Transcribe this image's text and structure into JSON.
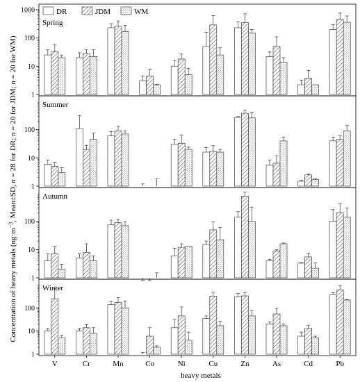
{
  "chart_data": {
    "type": "bar",
    "yscale": "log",
    "ylim": [
      1,
      1000
    ],
    "yticks": [
      "1",
      "10",
      "100",
      "1000"
    ],
    "xlabel": "heavy metals",
    "ylabel_parts": [
      "Concentration of heavy metals (ng·m",
      "−3",
      ", Mean±SD, ",
      "n",
      " = 28 for DR; ",
      "n",
      " = 20 for JDM; ",
      "n",
      " = 20 for WM)"
    ],
    "categories": [
      "V",
      "Cr",
      "Mn",
      "Co",
      "Ni",
      "Cu",
      "Zn",
      "As",
      "Cd",
      "Pb"
    ],
    "legend": [
      "DR",
      "JDM",
      "WM"
    ],
    "legend_position": "top-left",
    "panels": [
      {
        "season": "Spring",
        "series": [
          {
            "name": "DR",
            "values": [
              25,
              20,
              230,
              3,
              10,
              50,
              230,
              22,
              2.2,
              200
            ],
            "errors": [
              38,
              30,
              320,
              4.5,
              16,
              160,
              370,
              32,
              3.2,
              300
            ]
          },
          {
            "name": "JDM",
            "values": [
              32,
              28,
              260,
              4.5,
              18,
              290,
              350,
              50,
              3.8,
              450
            ],
            "errors": [
              58,
              38,
              400,
              7.5,
              27,
              620,
              720,
              110,
              7,
              760
            ]
          },
          {
            "name": "WM",
            "values": [
              20,
              22,
              170,
              2.2,
              5,
              25,
              150,
              14,
              2.2,
              360
            ],
            "errors": [
              25,
              38,
              280,
              2.3,
              8.5,
              45,
              200,
              20,
              2.2,
              600
            ]
          }
        ]
      },
      {
        "season": "Summer",
        "series": [
          {
            "name": "DR",
            "values": [
              6,
              110,
              60,
              0,
              30,
              16,
              270,
              5.5,
              1.5,
              40
            ],
            "errors": [
              8.5,
              310,
              85,
              1.2,
              45,
              23,
              290,
              8.5,
              1.6,
              55
            ]
          },
          {
            "name": "JDM",
            "values": [
              5,
              20,
              90,
              0,
              33,
              17,
              380,
              6.5,
              2.5,
              45
            ],
            "errors": [
              7,
              28,
              130,
              0,
              65,
              27,
              480,
              12,
              2.7,
              60
            ]
          },
          {
            "name": "WM",
            "values": [
              3,
              45,
              70,
              1.0,
              20,
              16,
              260,
              40,
              1.7,
              90
            ],
            "errors": [
              4.5,
              75,
              90,
              1.8,
              24,
              20,
              420,
              55,
              1.8,
              140
            ]
          }
        ]
      },
      {
        "season": "Autumn",
        "series": [
          {
            "name": "DR",
            "values": [
              4,
              5,
              75,
              0,
              6,
              15,
              140,
              4,
              3.3,
              100
            ],
            "errors": [
              7,
              7,
              110,
              0.8,
              11,
              20,
              220,
              4.5,
              3.5,
              260
            ]
          },
          {
            "name": "JDM",
            "values": [
              7,
              8,
              90,
              0,
              12,
              50,
              780,
              9,
              5.5,
              200
            ],
            "errors": [
              13,
              16,
              120,
              0.8,
              16,
              95,
              1100,
              10,
              7.5,
              420
            ]
          },
          {
            "name": "WM",
            "values": [
              2,
              4,
              70,
              0,
              13,
              22,
              100,
              16,
              2.2,
              140
            ],
            "errors": [
              3,
              6,
              95,
              1.5,
              13,
              60,
              320,
              17,
              3.4,
              300
            ]
          }
        ]
      },
      {
        "season": "Winter",
        "series": [
          {
            "name": "DR",
            "values": [
              10,
              10,
              140,
              1.0,
              14,
              35,
              300,
              20,
              6,
              380
            ],
            "errors": [
              13,
              13,
              190,
              1.2,
              32,
              45,
              420,
              25,
              9,
              460
            ]
          },
          {
            "name": "JDM",
            "values": [
              250,
              14,
              170,
              6,
              45,
              320,
              330,
              55,
              13,
              600
            ],
            "errors": [
              700,
              19,
              280,
              14,
              110,
              490,
              450,
              95,
              18,
              930
            ]
          },
          {
            "name": "WM",
            "values": [
              5,
              8,
              100,
              2,
              4,
              17,
              45,
              17,
              5,
              220
            ],
            "errors": [
              6.5,
              14,
              200,
              2.3,
              9,
              27,
              75,
              20,
              6,
              230
            ]
          }
        ]
      }
    ]
  }
}
